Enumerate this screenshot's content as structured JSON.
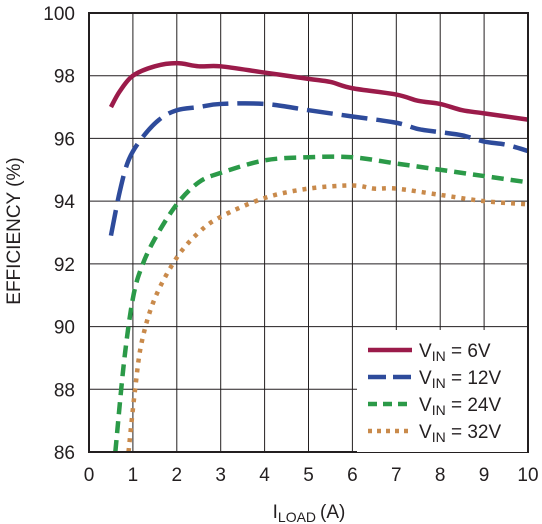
{
  "chart_data": {
    "type": "line",
    "title": "",
    "xlabel_main": "I",
    "xlabel_sub": "LOAD",
    "xlabel_unit": "(A)",
    "ylabel": "EFFICIENCY (%)",
    "xlim": [
      0,
      10
    ],
    "ylim": [
      86,
      100
    ],
    "x_ticks": [
      0,
      1,
      2,
      3,
      4,
      5,
      6,
      7,
      8,
      9,
      10
    ],
    "y_ticks": [
      86,
      88,
      90,
      92,
      94,
      96,
      98,
      100
    ],
    "grid": true,
    "legend_position": "bottom-right",
    "series": [
      {
        "name_main": "V",
        "name_sub": "IN",
        "name_rest": " = 6V",
        "color": "#9b1b4a",
        "dash": "solid",
        "points": [
          [
            0.5,
            97.0
          ],
          [
            0.7,
            97.5
          ],
          [
            1.0,
            98.0
          ],
          [
            1.5,
            98.3
          ],
          [
            2.0,
            98.4
          ],
          [
            2.5,
            98.3
          ],
          [
            3.0,
            98.3
          ],
          [
            4.0,
            98.1
          ],
          [
            5.0,
            97.9
          ],
          [
            5.5,
            97.8
          ],
          [
            6.0,
            97.6
          ],
          [
            7.0,
            97.4
          ],
          [
            7.5,
            97.2
          ],
          [
            8.0,
            97.1
          ],
          [
            8.5,
            96.9
          ],
          [
            9.0,
            96.8
          ],
          [
            10.0,
            96.6
          ]
        ]
      },
      {
        "name_main": "V",
        "name_sub": "IN",
        "name_rest": " = 12V",
        "color": "#2e4b9b",
        "dash": "longdash",
        "points": [
          [
            0.5,
            92.9
          ],
          [
            0.7,
            94.3
          ],
          [
            0.9,
            95.3
          ],
          [
            1.2,
            96.0
          ],
          [
            1.6,
            96.6
          ],
          [
            2.0,
            96.9
          ],
          [
            2.5,
            97.0
          ],
          [
            3.0,
            97.1
          ],
          [
            4.0,
            97.1
          ],
          [
            5.0,
            96.9
          ],
          [
            6.0,
            96.7
          ],
          [
            7.0,
            96.5
          ],
          [
            7.5,
            96.3
          ],
          [
            8.0,
            96.2
          ],
          [
            8.5,
            96.1
          ],
          [
            9.0,
            95.9
          ],
          [
            9.5,
            95.8
          ],
          [
            10.0,
            95.6
          ]
        ]
      },
      {
        "name_main": "V",
        "name_sub": "IN",
        "name_rest": " = 24V",
        "color": "#2b9a48",
        "dash": "dash",
        "points": [
          [
            0.6,
            86.0
          ],
          [
            0.8,
            88.9
          ],
          [
            1.0,
            90.9
          ],
          [
            1.2,
            91.9
          ],
          [
            1.5,
            92.8
          ],
          [
            2.0,
            93.9
          ],
          [
            2.5,
            94.6
          ],
          [
            3.0,
            94.9
          ],
          [
            4.0,
            95.3
          ],
          [
            5.0,
            95.4
          ],
          [
            6.0,
            95.4
          ],
          [
            7.0,
            95.2
          ],
          [
            8.0,
            95.0
          ],
          [
            9.0,
            94.8
          ],
          [
            10.0,
            94.6
          ]
        ]
      },
      {
        "name_main": "V",
        "name_sub": "IN",
        "name_rest": " = 32V",
        "color": "#c98a4b",
        "dash": "dot",
        "points": [
          [
            0.9,
            86.0
          ],
          [
            1.05,
            88.0
          ],
          [
            1.2,
            89.5
          ],
          [
            1.5,
            90.9
          ],
          [
            2.0,
            92.2
          ],
          [
            2.5,
            93.0
          ],
          [
            3.0,
            93.5
          ],
          [
            4.0,
            94.1
          ],
          [
            5.0,
            94.4
          ],
          [
            6.0,
            94.5
          ],
          [
            6.5,
            94.4
          ],
          [
            7.0,
            94.4
          ],
          [
            8.0,
            94.2
          ],
          [
            9.0,
            94.0
          ],
          [
            10.0,
            93.9
          ]
        ]
      }
    ]
  }
}
